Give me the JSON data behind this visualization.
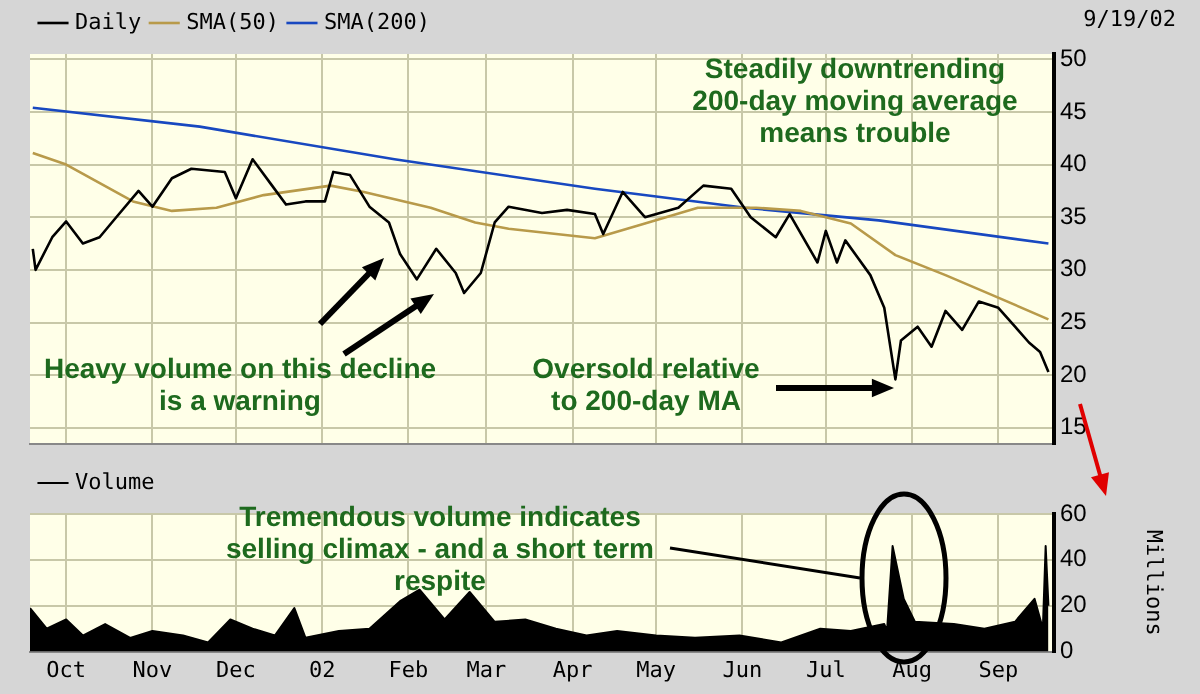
{
  "chart_data": [
    {
      "type": "line",
      "subtitle": "9/19/02",
      "series": [
        {
          "name": "Daily",
          "color": "#000000",
          "x": [
            "2001-09-19",
            "2001-09-20",
            "2001-09-26",
            "2001-10-01",
            "2001-10-07",
            "2001-10-13",
            "2001-10-19",
            "2001-10-27",
            "2001-11-01",
            "2001-11-08",
            "2001-11-15",
            "2001-11-27",
            "2001-12-01",
            "2001-12-07",
            "2001-12-14",
            "2001-12-19",
            "2001-12-26",
            "2002-01-02",
            "2002-01-05",
            "2002-01-11",
            "2002-01-18",
            "2002-01-25",
            "2002-01-29",
            "2002-02-04",
            "2002-02-11",
            "2002-02-18",
            "2002-02-21",
            "2002-02-27",
            "2002-03-04",
            "2002-03-09",
            "2002-03-21",
            "2002-03-30",
            "2002-04-09",
            "2002-04-12",
            "2002-04-19",
            "2002-04-27",
            "2002-05-09",
            "2002-05-18",
            "2002-05-28",
            "2002-06-04",
            "2002-06-13",
            "2002-06-18",
            "2002-06-28",
            "2002-07-01",
            "2002-07-05",
            "2002-07-08",
            "2002-07-17",
            "2002-07-22",
            "2002-07-26",
            "2002-07-28",
            "2002-08-03",
            "2002-08-08",
            "2002-08-13",
            "2002-08-19",
            "2002-08-25",
            "2002-09-01",
            "2002-09-07",
            "2002-09-12",
            "2002-09-16",
            "2002-09-19"
          ],
          "values": [
            32,
            30,
            33.1,
            34.6,
            32.5,
            33.1,
            35,
            37.5,
            36,
            38.7,
            39.6,
            39.3,
            36.8,
            40.5,
            38,
            36.2,
            36.5,
            36.5,
            39.3,
            39,
            36,
            34.5,
            31.5,
            29.1,
            32,
            29.7,
            27.8,
            29.7,
            34.5,
            36,
            35.4,
            35.7,
            35.3,
            33.4,
            37.4,
            35,
            35.9,
            38,
            37.7,
            35,
            33.1,
            35.3,
            30.7,
            33.7,
            30.7,
            32.8,
            29.5,
            26.4,
            19.6,
            23.3,
            24.6,
            22.7,
            26.1,
            24.3,
            27,
            26.4,
            24.6,
            23.1,
            22.2,
            20.3
          ]
        },
        {
          "name": "SMA(50)",
          "color": "#b89a4a",
          "x": [
            "2001-09-19",
            "2001-10-01",
            "2001-10-25",
            "2001-11-08",
            "2001-11-24",
            "2001-12-11",
            "2002-01-04",
            "2002-01-16",
            "2002-02-09",
            "2002-02-25",
            "2002-03-09",
            "2002-04-09",
            "2002-04-27",
            "2002-05-16",
            "2002-06-06",
            "2002-06-22",
            "2002-07-10",
            "2002-07-26",
            "2002-08-13",
            "2002-08-29",
            "2002-09-19"
          ],
          "values": [
            41.1,
            40,
            36.5,
            35.6,
            35.9,
            37.1,
            38,
            37.4,
            35.9,
            34.5,
            33.9,
            33,
            34.4,
            35.9,
            35.9,
            35.6,
            34.4,
            31.4,
            29.5,
            27.7,
            25.3
          ]
        },
        {
          "name": "SMA(200)",
          "color": "#1848c0",
          "x": [
            "2001-09-19",
            "2001-11-18",
            "2002-01-27",
            "2002-04-09",
            "2002-06-02",
            "2002-07-20",
            "2002-09-19"
          ],
          "values": [
            45.4,
            43.6,
            40.5,
            37.7,
            35.9,
            34.7,
            32.5
          ]
        }
      ],
      "xlim": [
        "2001-09-18",
        "2002-09-21"
      ],
      "xticks": [
        {
          "value": "2001-10-01",
          "label": null
        },
        {
          "value": "2001-11-01",
          "label": null
        },
        {
          "value": "2001-12-01",
          "label": null
        },
        {
          "value": "2002-01-01",
          "label": null
        },
        {
          "value": "2002-02-01",
          "label": null
        },
        {
          "value": "2002-03-01",
          "label": null
        },
        {
          "value": "2002-04-01",
          "label": null
        },
        {
          "value": "2002-05-01",
          "label": null
        },
        {
          "value": "2002-06-01",
          "label": null
        },
        {
          "value": "2002-07-01",
          "label": null
        },
        {
          "value": "2002-08-01",
          "label": null
        },
        {
          "value": "2002-09-01",
          "label": null
        }
      ],
      "ylim": [
        13.5,
        50.5
      ],
      "yticks": [
        15,
        20,
        25,
        30,
        35,
        40,
        45,
        50
      ],
      "grid": true,
      "legend": "top left",
      "tick_labels": "y",
      "annotations": [
        "Steadily downtrending 200-day moving average means trouble",
        "Heavy volume on this decline is a warning",
        "Oversold relative to 200-day MA"
      ]
    },
    {
      "type": "area",
      "series": [
        {
          "name": "Volume",
          "color": "#000000",
          "x": [
            "2001-09-18",
            "2001-09-24",
            "2001-10-01",
            "2001-10-07",
            "2001-10-15",
            "2001-10-24",
            "2001-11-01",
            "2001-11-12",
            "2001-11-21",
            "2001-11-29",
            "2001-12-07",
            "2001-12-15",
            "2001-12-22",
            "2001-12-26",
            "2002-01-07",
            "2002-01-18",
            "2002-01-29",
            "2002-02-05",
            "2002-02-14",
            "2002-02-23",
            "2002-03-04",
            "2002-03-15",
            "2002-03-26",
            "2002-04-06",
            "2002-04-17",
            "2002-05-01",
            "2002-05-15",
            "2002-05-31",
            "2002-06-15",
            "2002-06-29",
            "2002-07-10",
            "2002-07-22",
            "2002-07-23",
            "2002-07-25",
            "2002-07-29",
            "2002-08-02",
            "2002-08-16",
            "2002-08-27",
            "2002-09-07",
            "2002-09-14",
            "2002-09-17",
            "2002-09-18",
            "2002-09-19"
          ],
          "values": [
            19,
            10,
            14,
            7,
            12,
            6,
            9,
            7,
            4,
            14,
            10,
            7,
            19,
            6,
            9,
            10,
            22,
            27,
            14,
            26,
            13,
            14,
            10,
            7,
            9,
            7,
            6,
            7,
            4,
            10,
            9,
            12,
            9,
            46,
            23,
            13,
            12,
            10,
            13,
            23,
            10,
            46,
            20
          ]
        }
      ],
      "xlim": [
        "2001-09-18",
        "2002-09-21"
      ],
      "xticks": [
        {
          "value": "2001-10-01",
          "label": "Oct"
        },
        {
          "value": "2001-11-01",
          "label": "Nov"
        },
        {
          "value": "2001-12-01",
          "label": "Dec"
        },
        {
          "value": "2002-01-01",
          "label": "02"
        },
        {
          "value": "2002-02-01",
          "label": "Feb"
        },
        {
          "value": "2002-03-01",
          "label": "Mar"
        },
        {
          "value": "2002-04-01",
          "label": "Apr"
        },
        {
          "value": "2002-05-01",
          "label": "May"
        },
        {
          "value": "2002-06-01",
          "label": "Jun"
        },
        {
          "value": "2002-07-01",
          "label": "Jul"
        },
        {
          "value": "2002-08-01",
          "label": "Aug"
        },
        {
          "value": "2002-09-01",
          "label": "Sep"
        }
      ],
      "ylim": [
        0,
        60
      ],
      "yticks": [
        0,
        20,
        40,
        60
      ],
      "ylabel": "Millions",
      "grid": true,
      "legend": "top left",
      "annotations": [
        "Tremendous volume indicates selling climax - and a short term respite"
      ]
    }
  ]
}
